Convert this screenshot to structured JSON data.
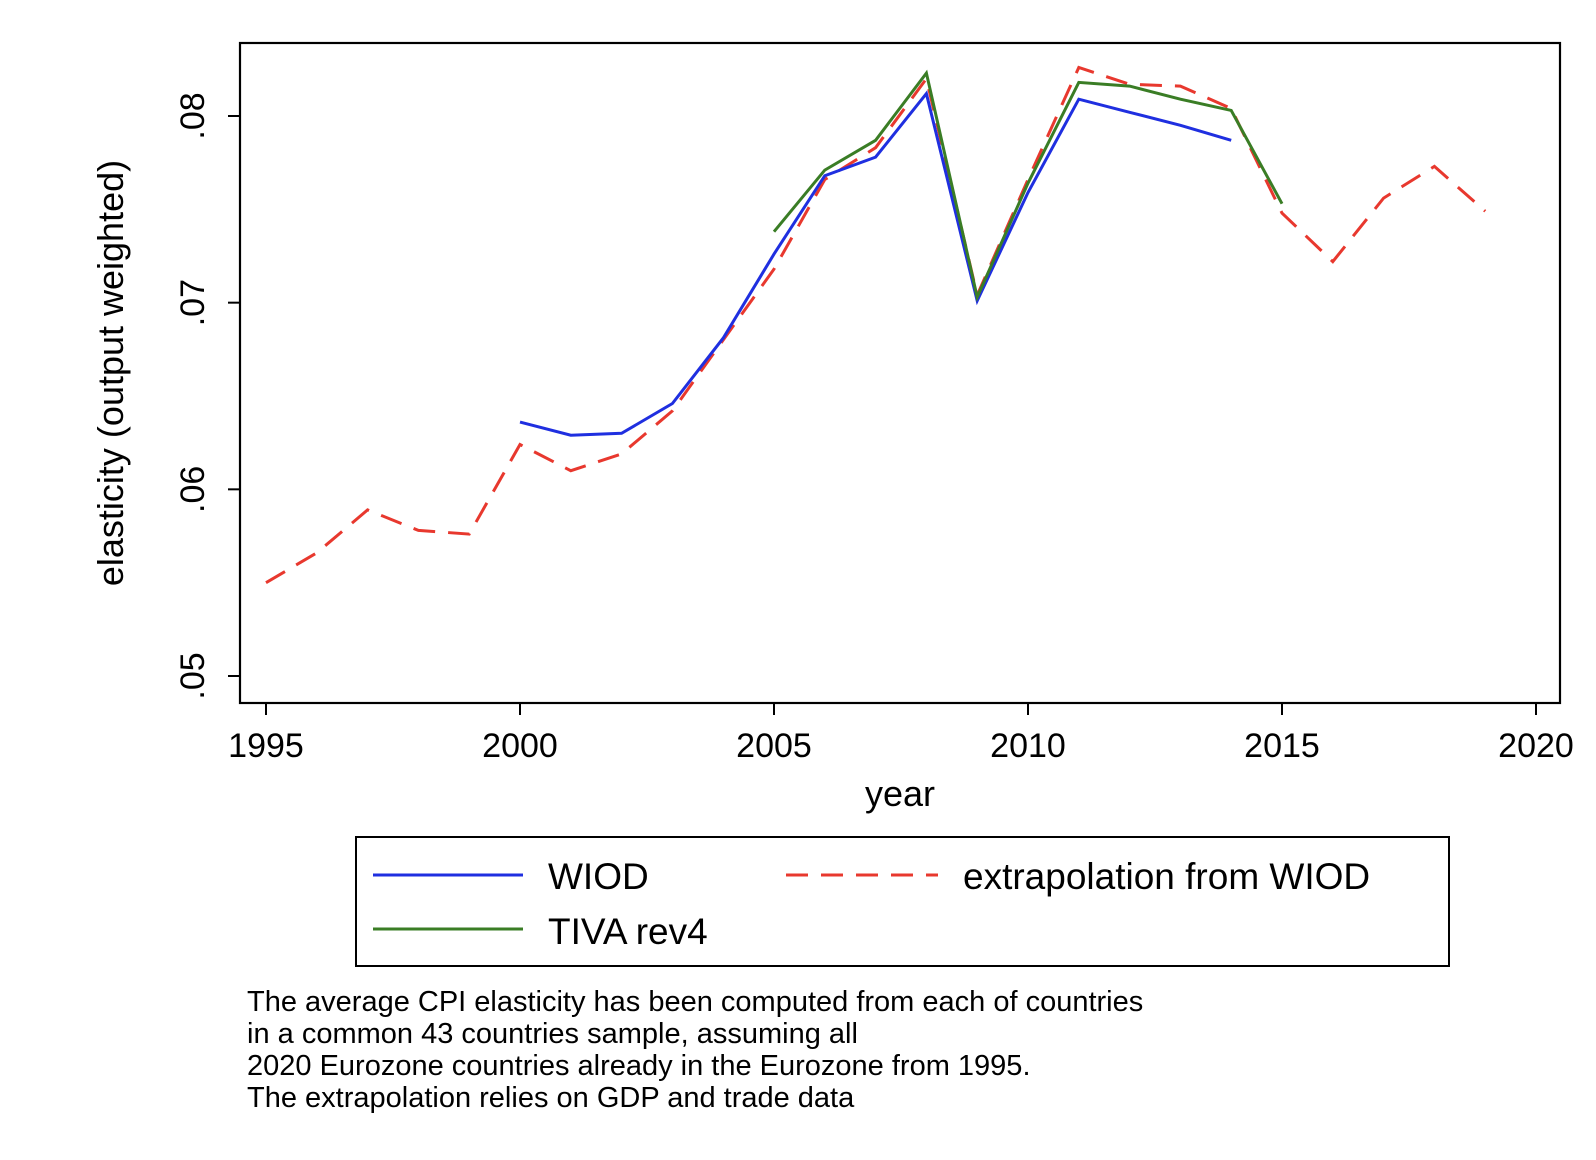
{
  "chart_data": {
    "type": "line",
    "xlabel": "year",
    "ylabel": "elasticity (output weighted)",
    "xlim": [
      1995,
      2020
    ],
    "ylim": [
      0.05,
      0.084
    ],
    "xticks": [
      1995,
      2000,
      2005,
      2010,
      2015,
      2020
    ],
    "xtick_labels": [
      "1995",
      "2000",
      "2005",
      "2010",
      "2015",
      "2020"
    ],
    "yticks": [
      0.05,
      0.06,
      0.07,
      0.08
    ],
    "ytick_labels": [
      ".05",
      ".06",
      ".07",
      ".08"
    ],
    "grid": false,
    "legend_position": "bottom",
    "series": [
      {
        "name": "WIOD",
        "color": "#1f2fe0",
        "dash": "solid",
        "x": [
          2000,
          2001,
          2002,
          2003,
          2004,
          2005,
          2006,
          2007,
          2008,
          2009,
          2010,
          2011,
          2012,
          2013,
          2014
        ],
        "y": [
          0.0636,
          0.0629,
          0.063,
          0.0646,
          0.0681,
          0.0726,
          0.0768,
          0.0778,
          0.0812,
          0.0701,
          0.0759,
          0.0809,
          0.0802,
          0.0795,
          0.0787
        ]
      },
      {
        "name": "extrapolation from WIOD",
        "color": "#e8382e",
        "dash": "dashed",
        "x": [
          1995,
          1996,
          1997,
          1998,
          1999,
          2000,
          2001,
          2002,
          2003,
          2004,
          2005,
          2006,
          2007,
          2008,
          2009,
          2010,
          2011,
          2012,
          2013,
          2014,
          2015,
          2016,
          2017,
          2018,
          2019
        ],
        "y": [
          0.055,
          0.0566,
          0.0589,
          0.0578,
          0.0576,
          0.0624,
          0.061,
          0.0619,
          0.0642,
          0.068,
          0.0718,
          0.0766,
          0.0783,
          0.082,
          0.0704,
          0.0766,
          0.0826,
          0.0817,
          0.0816,
          0.0804,
          0.0748,
          0.0722,
          0.0756,
          0.0773,
          0.0749
        ]
      },
      {
        "name": "TIVA rev4",
        "color": "#3a7d25",
        "dash": "solid",
        "x": [
          2005,
          2006,
          2007,
          2008,
          2009,
          2010,
          2011,
          2012,
          2013,
          2014,
          2015
        ],
        "y": [
          0.0738,
          0.0771,
          0.0787,
          0.0823,
          0.0703,
          0.0764,
          0.0818,
          0.0816,
          0.0809,
          0.0803,
          0.0753
        ]
      }
    ]
  },
  "note": {
    "lines": [
      "The average CPI elasticity has been computed from each of countries",
      "in a common 43 countries sample, assuming all",
      "2020 Eurozone countries already in the Eurozone from 1995.",
      "The extrapolation relies on GDP and trade data"
    ]
  }
}
